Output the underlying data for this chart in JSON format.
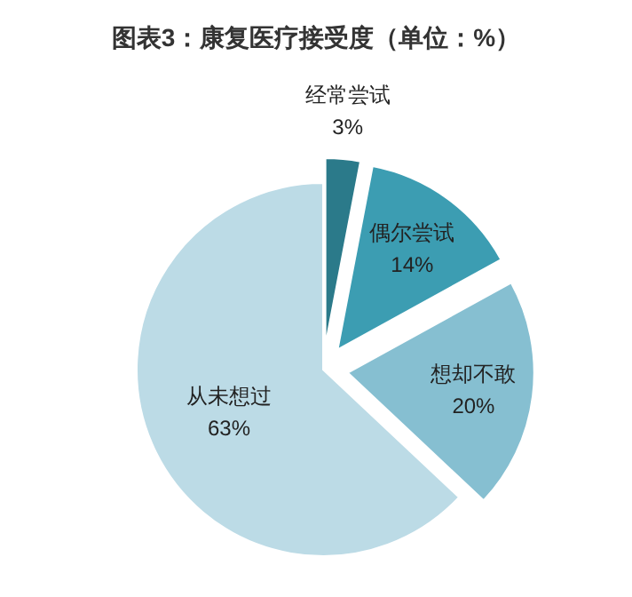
{
  "chart_data": {
    "type": "pie",
    "title": "图表3：康复医疗接受度（单位：%）",
    "categories": [
      "经常尝试",
      "偶尔尝试",
      "想却不敢",
      "从未想过"
    ],
    "values": [
      3,
      14,
      20,
      63
    ],
    "colors": [
      "#2b7a8a",
      "#3c9db2",
      "#86bfd1",
      "#bcdbe6"
    ],
    "value_labels": [
      "3%",
      "14%",
      "20%",
      "63%"
    ]
  }
}
